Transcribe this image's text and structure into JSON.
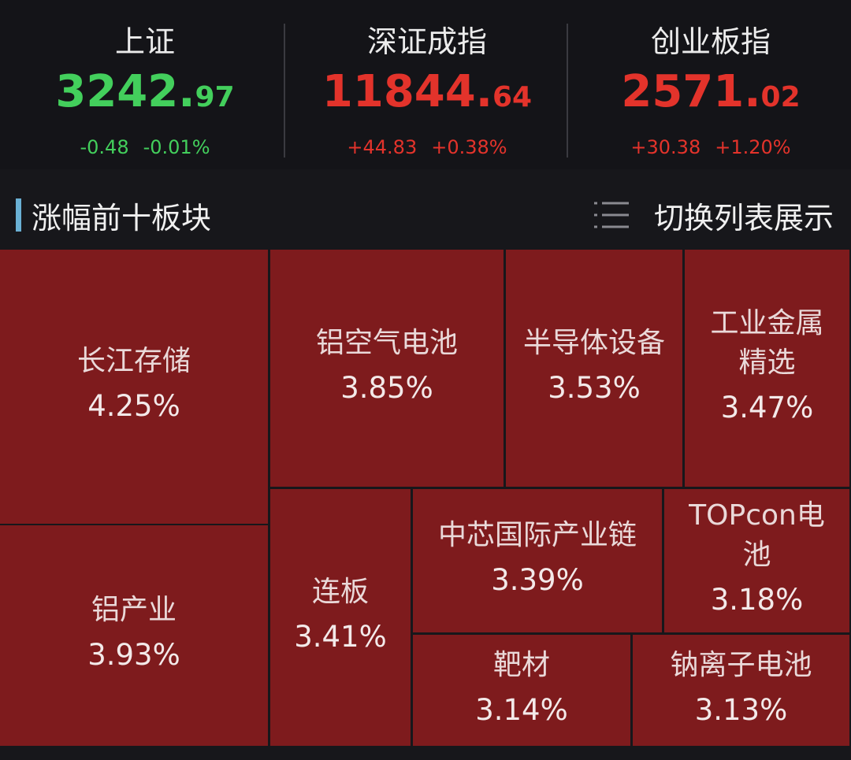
{
  "indices": [
    {
      "name": "上证",
      "value_main": "3242.",
      "value_decimal": "97",
      "change": "-0.48",
      "change_pct": "-0.01%",
      "trend": "down"
    },
    {
      "name": "深证成指",
      "value_main": "11844.",
      "value_decimal": "64",
      "change": "+44.83",
      "change_pct": "+0.38%",
      "trend": "up"
    },
    {
      "name": "创业板指",
      "value_main": "2571.",
      "value_decimal": "02",
      "change": "+30.38",
      "change_pct": "+1.20%",
      "trend": "up"
    }
  ],
  "section": {
    "title": "涨幅前十板块",
    "toggle": "切换列表展示"
  },
  "tiles": [
    {
      "name": "长江存储",
      "change": "4.25%"
    },
    {
      "name": "铝产业",
      "change": "3.93%"
    },
    {
      "name": "铝空气电池",
      "change": "3.85%"
    },
    {
      "name": "半导体设备",
      "change": "3.53%"
    },
    {
      "name": "工业金属精选",
      "change": "3.47%"
    },
    {
      "name": "连板",
      "change": "3.41%"
    },
    {
      "name": "中芯国际产业链",
      "change": "3.39%"
    },
    {
      "name": "TOPcon电池",
      "change": "3.18%"
    },
    {
      "name": "靶材",
      "change": "3.14%"
    },
    {
      "name": "钠离子电池",
      "change": "3.13%"
    }
  ]
}
